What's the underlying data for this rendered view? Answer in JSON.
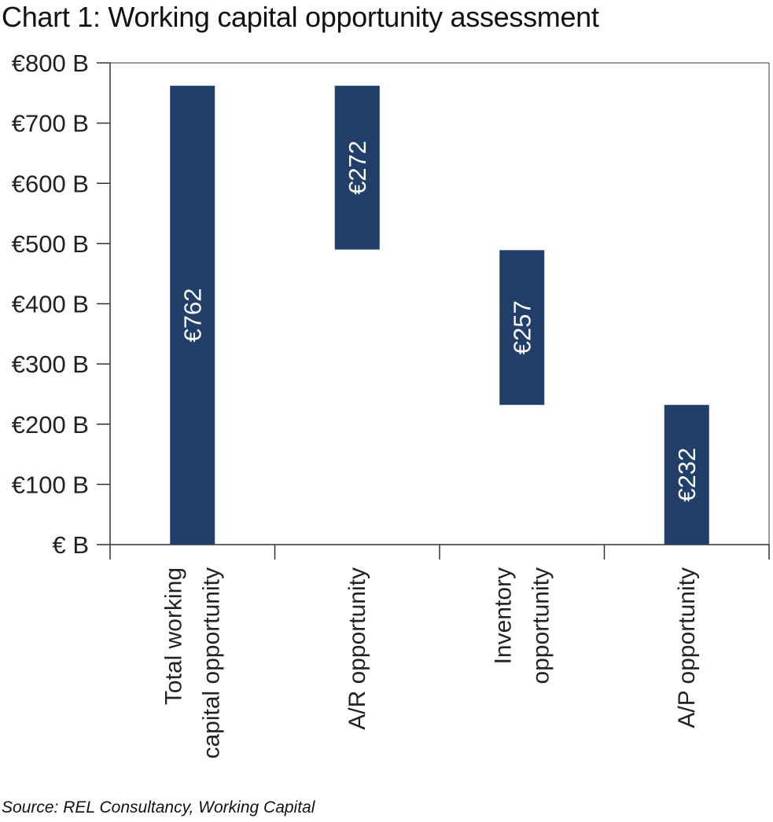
{
  "chart_data": {
    "type": "bar",
    "subtype": "waterfall",
    "title": "Chart 1: Working capital opportunity assessment",
    "source": "Source: REL Consultancy, Working Capital",
    "categories": [
      [
        "Total working",
        "capital opportunity"
      ],
      [
        "A/R opportunity"
      ],
      [
        "Inventory",
        "opportunity"
      ],
      [
        "A/P opportunity"
      ]
    ],
    "bars": [
      {
        "base": 0,
        "value": 762,
        "label": "€762"
      },
      {
        "base": 490,
        "value": 272,
        "label": "€272"
      },
      {
        "base": 232,
        "value": 257,
        "label": "€257"
      },
      {
        "base": 0,
        "value": 232,
        "label": "€232"
      }
    ],
    "yticks": [
      0,
      100,
      200,
      300,
      400,
      500,
      600,
      700,
      800
    ],
    "ytick_labels": [
      "€ B",
      "€100 B",
      "€200 B",
      "€300 B",
      "€400 B",
      "€500 B",
      "€600 B",
      "€700 B",
      "€800 B"
    ],
    "ylim": [
      0,
      800
    ],
    "bar_color": "#213f69",
    "grid": false,
    "legend": "none"
  }
}
